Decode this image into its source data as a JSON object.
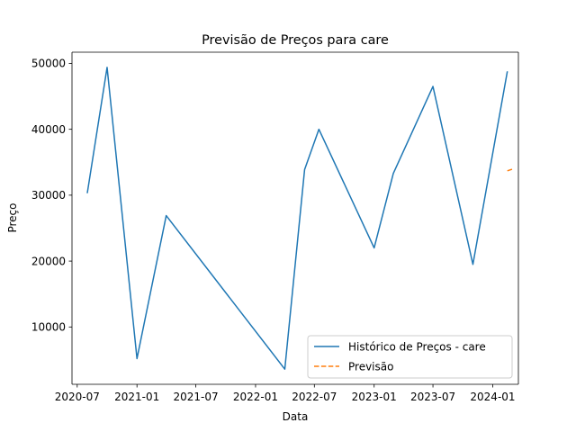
{
  "chart_data": {
    "type": "line",
    "title": "Previsão de Preços para care",
    "xlabel": "Data",
    "ylabel": "Preço",
    "x_axis": {
      "type": "date",
      "range": [
        "2020-06-15",
        "2024-03-20"
      ],
      "ticks": [
        "2020-07-01",
        "2021-01-01",
        "2021-07-01",
        "2022-01-01",
        "2022-07-01",
        "2023-01-01",
        "2023-07-01",
        "2024-01-01"
      ],
      "tick_labels": [
        "2020-07",
        "2021-01",
        "2021-07",
        "2022-01",
        "2022-07",
        "2023-01",
        "2023-07",
        "2024-01"
      ]
    },
    "y_axis": {
      "range": [
        1300,
        51700
      ],
      "ticks": [
        10000,
        20000,
        30000,
        40000,
        50000
      ],
      "tick_labels": [
        "10000",
        "20000",
        "30000",
        "40000",
        "50000"
      ]
    },
    "grid": false,
    "legend_position": "lower-right",
    "series": [
      {
        "name": "Histórico de Preços - care",
        "color": "#1f77b4",
        "style": "solid",
        "points": [
          {
            "x": "2020-08-01",
            "y": 30300
          },
          {
            "x": "2020-10-01",
            "y": 49400
          },
          {
            "x": "2021-01-01",
            "y": 5200
          },
          {
            "x": "2021-04-01",
            "y": 26900
          },
          {
            "x": "2022-04-01",
            "y": 3600
          },
          {
            "x": "2022-06-01",
            "y": 33900
          },
          {
            "x": "2022-07-15",
            "y": 40000
          },
          {
            "x": "2023-01-01",
            "y": 22000
          },
          {
            "x": "2023-03-01",
            "y": 33300
          },
          {
            "x": "2023-07-01",
            "y": 46500
          },
          {
            "x": "2023-11-01",
            "y": 19500
          },
          {
            "x": "2024-02-15",
            "y": 48800
          }
        ]
      },
      {
        "name": "Previsão",
        "color": "#ff7f0e",
        "style": "dashed",
        "points": [
          {
            "x": "2024-02-15",
            "y": 33700
          },
          {
            "x": "2024-03-01",
            "y": 33950
          }
        ]
      }
    ]
  }
}
